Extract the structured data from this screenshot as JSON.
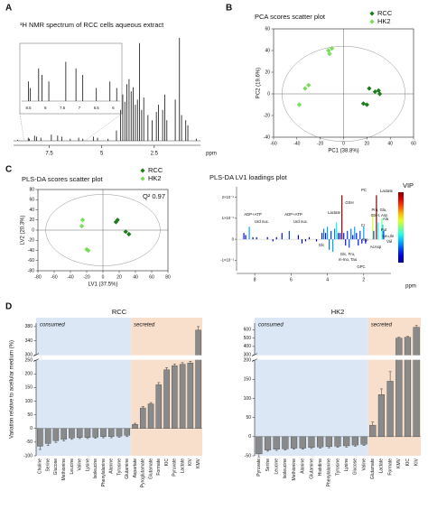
{
  "panel_labels": [
    "A",
    "B",
    "C",
    "D"
  ],
  "chart_data": [
    {
      "type": "spectrum",
      "title": "¹H NMR spectrum of RCC cells aqueous extract",
      "xlabel": "ppm",
      "color": "#111111",
      "x": [
        9.0,
        8.5,
        8.45,
        8.2,
        8.1,
        7.9,
        7.4,
        7.1,
        6.9,
        6.5,
        6.1,
        5.9,
        5.4,
        5.2,
        4.7,
        4.3,
        4.1,
        4.0,
        3.9,
        3.8,
        3.7,
        3.6,
        3.5,
        3.4,
        3.3,
        3.2,
        3.1,
        3.0,
        2.8,
        2.6,
        2.4,
        2.3,
        2.1,
        2.0,
        1.9,
        1.5,
        1.3,
        1.2,
        1.0,
        0.9,
        0.5
      ],
      "values": [
        1,
        3,
        2,
        5,
        4,
        3,
        6,
        5,
        4,
        2,
        3,
        2,
        4,
        3,
        2,
        10,
        30,
        45,
        38,
        55,
        60,
        48,
        52,
        35,
        40,
        95,
        30,
        42,
        25,
        20,
        28,
        35,
        30,
        45,
        20,
        40,
        100,
        25,
        20,
        15,
        2
      ],
      "xlim": [
        9.2,
        0.3
      ],
      "ylim": [
        0,
        100
      ],
      "xticks": [
        7.5,
        5.0,
        2.5
      ],
      "inset_xlim": [
        8.7,
        5.8
      ],
      "inset_ylim": [
        0,
        8
      ],
      "inset_xticks": [
        8.5,
        8.0,
        7.5,
        7.0,
        6.5,
        6.0
      ]
    },
    {
      "type": "scatter",
      "title": "PCA scores scatter plot",
      "xlabel": "PC1 (38.8%)",
      "ylabel": "PC2 (19.6%)",
      "xlim": [
        -60,
        60
      ],
      "ylim": [
        -40,
        60
      ],
      "xticks": [
        -60,
        -40,
        -20,
        0,
        20,
        40,
        60
      ],
      "yticks": [
        -40,
        -20,
        0,
        20,
        40,
        60
      ],
      "legend": "top-right",
      "series": [
        {
          "name": "RCC",
          "color": "#1e7b1e",
          "x": [
            22,
            27,
            30,
            31,
            20,
            17
          ],
          "values": [
            5,
            2,
            3,
            0,
            -10,
            -9
          ]
        },
        {
          "name": "HK2",
          "color": "#77dd55",
          "x": [
            -13,
            -10,
            -12,
            -33,
            -30,
            -38
          ],
          "values": [
            40,
            42,
            37,
            5,
            8,
            -10
          ]
        }
      ]
    },
    {
      "type": "scatter",
      "title": "PLS-DA scores scatter plot",
      "xlabel": "LV1 (37.5%)",
      "ylabel": "LV2 (20.3%)",
      "annotation": "Q² 0.97",
      "xlim": [
        -80,
        80
      ],
      "ylim": [
        -80,
        80
      ],
      "xticks": [
        -80,
        -60,
        -40,
        -20,
        0,
        20,
        40,
        60,
        80
      ],
      "yticks": [
        -80,
        -60,
        -40,
        -20,
        0,
        20,
        40,
        60,
        80
      ],
      "legend": "top-right",
      "series": [
        {
          "name": "RCC",
          "color": "#1e7b1e",
          "x": [
            18,
            16,
            28,
            32
          ],
          "values": [
            20,
            16,
            -3,
            -8
          ]
        },
        {
          "name": "HK2",
          "color": "#77dd55",
          "x": [
            -25,
            -26,
            -20,
            -18
          ],
          "values": [
            20,
            8,
            -38,
            -40
          ]
        }
      ]
    },
    {
      "type": "loadings",
      "title": "PLS-DA LV1 loadings plot",
      "xlabel": "ppm",
      "colorbar_label": "VIP",
      "colormap": "jet",
      "x": [
        8.9,
        8.6,
        8.5,
        8.3,
        8.1,
        7.9,
        7.6,
        7.3,
        7.0,
        6.8,
        6.5,
        6.1,
        5.9,
        5.6,
        5.4,
        5.2,
        5.0,
        4.6,
        4.3,
        4.2,
        4.1,
        4.0,
        3.9,
        3.8,
        3.7,
        3.6,
        3.5,
        3.4,
        3.3,
        3.2,
        3.1,
        3.0,
        2.9,
        2.8,
        2.7,
        2.6,
        2.5,
        2.4,
        2.3,
        2.2,
        2.1,
        2.0,
        1.9,
        1.5,
        1.45,
        1.3,
        1.2,
        1.0,
        0.95,
        0.9
      ],
      "values": [
        0,
        0.03,
        0.02,
        0.06,
        0.01,
        0.01,
        0,
        0.01,
        -0.01,
        0.01,
        0.03,
        0.04,
        0,
        0.02,
        -0.02,
        -0.01,
        0.01,
        -0.01,
        0.03,
        0.05,
        0.03,
        0.06,
        -0.05,
        0.04,
        -0.06,
        0.05,
        0.08,
        0.03,
        0.03,
        0.21,
        0.03,
        -0.03,
        0.04,
        -0.04,
        0.05,
        0.02,
        0.06,
        0.03,
        -0.03,
        0.04,
        -0.02,
        0.06,
        -0.02,
        0.12,
        0.04,
        0.21,
        0.08,
        0.1,
        0.07,
        0.04
      ],
      "xlim": [
        9.0,
        0.5
      ],
      "ylim": [
        -0.15,
        0.25
      ],
      "xticks": [
        8.0,
        6.0,
        4.0,
        2.0
      ],
      "yticks": [
        {
          "value": 0.2,
          "label": "2×10⁻¹"
        },
        {
          "value": 0.1,
          "label": "1×10⁻¹"
        },
        0,
        {
          "value": -0.1,
          "label": "-1×10⁻¹"
        }
      ],
      "annotations": [
        "ADP+ATP",
        "Urd nuc.",
        "ADP+ATP",
        "Urd nuc.",
        "Glc",
        "Lactate",
        "GSH",
        "PC",
        "Cr",
        "Pro, Glu,",
        "GSH, Asn",
        "Asp",
        "Lactate",
        "Ala",
        "Put",
        "Leu,Ile",
        "Val",
        "AcAsp",
        "Glc, Fru,",
        "m-Ino, Tau",
        "GPC"
      ]
    },
    {
      "type": "bar",
      "title": "RCC",
      "ylabel": "Variation relative to acellular medium (%)",
      "color": "#8a8a8a",
      "consumed_label": "consumed",
      "secreted_label": "secreted",
      "consumed_color": "#dbe7f4",
      "secreted_color": "#f8dfcc",
      "categories": [
        "Choline",
        "Serine",
        "Glucose",
        "Methionine",
        "Leucine",
        "Valine",
        "Lysine",
        "Isoleucine",
        "Phenylalanine",
        "Alanine",
        "Tyrosine",
        "Glutamine",
        "Aspartate",
        "Pyroglutamate",
        "Glutamate",
        "Formate",
        "KIC",
        "Pyruvate",
        "Lactate",
        "KIV",
        "KMV"
      ],
      "values": [
        -65,
        -55,
        -45,
        -40,
        -35,
        -33,
        -33,
        -32,
        -30,
        -30,
        -28,
        -25,
        15,
        75,
        90,
        160,
        215,
        230,
        235,
        240,
        370
      ],
      "errors": [
        12,
        8,
        6,
        5,
        5,
        4,
        4,
        4,
        4,
        4,
        4,
        5,
        4,
        6,
        5,
        8,
        8,
        6,
        6,
        6,
        10
      ],
      "ylim": [
        -100,
        390
      ],
      "ybreak": [
        250,
        300
      ],
      "yticks": [
        -100,
        -50,
        0,
        50,
        100,
        150,
        200,
        250,
        300,
        340,
        380
      ]
    },
    {
      "type": "bar",
      "title": "HK2",
      "color": "#8a8a8a",
      "consumed_label": "consumed",
      "secreted_label": "secreted",
      "consumed_color": "#dbe7f4",
      "secreted_color": "#f8dfcc",
      "categories": [
        "Pyruvate",
        "Serine",
        "Leucine",
        "Isoleucine",
        "Methionine",
        "Alanine",
        "Glutamine",
        "Histidine",
        "Phenylalanine",
        "Tyrosine",
        "Lysine",
        "Glucose",
        "Valine",
        "Glutamate",
        "Lactate",
        "Formate",
        "KMV",
        "KIC",
        "KIV"
      ],
      "values": [
        -45,
        -35,
        -33,
        -32,
        -30,
        -30,
        -28,
        -27,
        -26,
        -25,
        -24,
        -22,
        -20,
        30,
        110,
        145,
        500,
        510,
        630
      ],
      "errors": [
        8,
        3,
        3,
        3,
        3,
        3,
        3,
        3,
        3,
        3,
        3,
        3,
        3,
        8,
        15,
        25,
        10,
        10,
        20
      ],
      "ylim": [
        -50,
        680
      ],
      "ybreak": [
        200,
        300
      ],
      "yticks": [
        -50,
        0,
        50,
        100,
        150,
        200,
        300,
        400,
        500,
        600
      ]
    }
  ]
}
